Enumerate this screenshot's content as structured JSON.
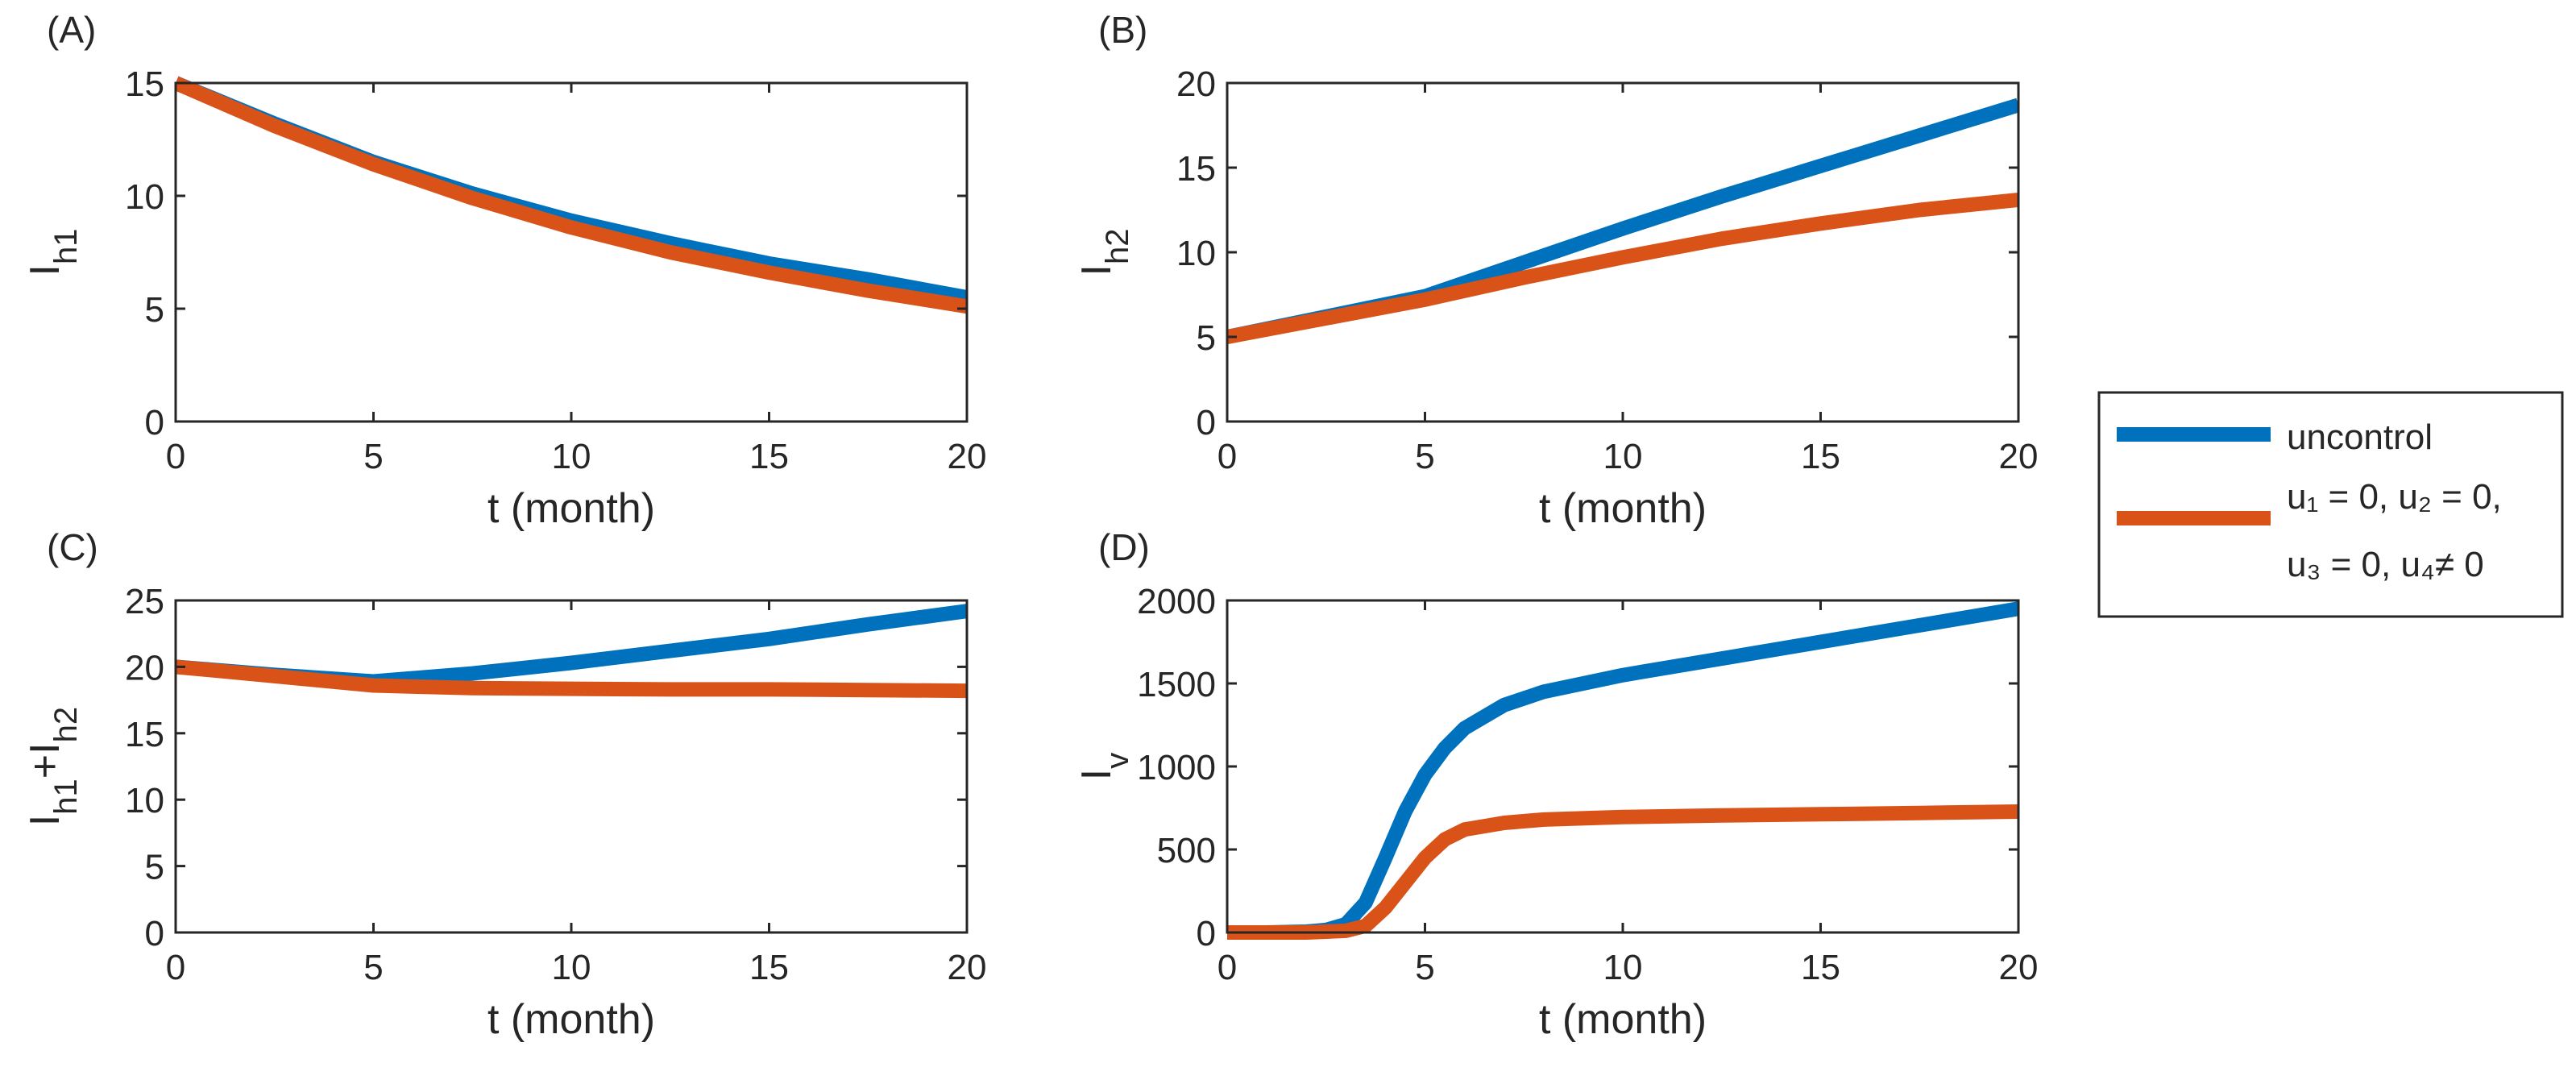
{
  "figure": {
    "legend": {
      "entries": [
        {
          "label_lines": [
            "uncontrol"
          ],
          "color": "#0072BD"
        },
        {
          "label_lines": [
            "u₁ = 0, u₂ = 0,",
            "u₃ = 0, u₄≠ 0"
          ],
          "color": "#D95319"
        }
      ]
    }
  },
  "chart_data": [
    {
      "type": "line",
      "panel_label": "(A)",
      "xlabel": "t (month)",
      "ylabel": "I_h1",
      "xlim": [
        0,
        20
      ],
      "ylim": [
        0,
        15
      ],
      "xticks": [
        0,
        5,
        10,
        15,
        20
      ],
      "yticks": [
        0,
        5,
        10,
        15
      ],
      "series": [
        {
          "name": "uncontrol",
          "color": "#0072BD",
          "x": [
            0,
            2.5,
            5,
            7.5,
            10,
            12.5,
            15,
            17.5,
            20
          ],
          "y": [
            15.0,
            13.2,
            11.5,
            10.1,
            8.9,
            7.9,
            7.0,
            6.3,
            5.5
          ]
        },
        {
          "name": "u1 = 0, u2 = 0, u3 = 0, u4 ≠ 0",
          "color": "#D95319",
          "x": [
            0,
            2.5,
            5,
            7.5,
            10,
            12.5,
            15,
            17.5,
            20
          ],
          "y": [
            15.0,
            13.1,
            11.4,
            9.9,
            8.6,
            7.5,
            6.6,
            5.8,
            5.1
          ]
        }
      ]
    },
    {
      "type": "line",
      "panel_label": "(B)",
      "xlabel": "t (month)",
      "ylabel": "I_h2",
      "xlim": [
        0,
        20
      ],
      "ylim": [
        0,
        20
      ],
      "xticks": [
        0,
        5,
        10,
        15,
        20
      ],
      "yticks": [
        0,
        5,
        10,
        15,
        20
      ],
      "series": [
        {
          "name": "uncontrol",
          "color": "#0072BD",
          "x": [
            0,
            2.5,
            5,
            7.5,
            10,
            12.5,
            15,
            17.5,
            20
          ],
          "y": [
            5.0,
            6.2,
            7.4,
            9.4,
            11.4,
            13.3,
            15.1,
            16.9,
            18.7
          ]
        },
        {
          "name": "u1 = 0, u2 = 0, u3 = 0, u4 ≠ 0",
          "color": "#D95319",
          "x": [
            0,
            2.5,
            5,
            7.5,
            10,
            12.5,
            15,
            17.5,
            20
          ],
          "y": [
            5.0,
            6.1,
            7.2,
            8.5,
            9.7,
            10.8,
            11.7,
            12.5,
            13.1
          ]
        }
      ]
    },
    {
      "type": "line",
      "panel_label": "(C)",
      "xlabel": "t (month)",
      "ylabel": "I_h1+I_h2",
      "xlim": [
        0,
        20
      ],
      "ylim": [
        0,
        25
      ],
      "xticks": [
        0,
        5,
        10,
        15,
        20
      ],
      "yticks": [
        0,
        5,
        10,
        15,
        20,
        25
      ],
      "series": [
        {
          "name": "uncontrol",
          "color": "#0072BD",
          "x": [
            0,
            2.5,
            5,
            7.5,
            10,
            12.5,
            15,
            17.5,
            20
          ],
          "y": [
            20.0,
            19.4,
            18.9,
            19.5,
            20.3,
            21.2,
            22.1,
            23.2,
            24.2
          ]
        },
        {
          "name": "u1 = 0, u2 = 0, u3 = 0, u4 ≠ 0",
          "color": "#D95319",
          "x": [
            0,
            2.5,
            5,
            7.5,
            10,
            12.5,
            15,
            17.5,
            20
          ],
          "y": [
            20.0,
            19.3,
            18.6,
            18.4,
            18.35,
            18.3,
            18.3,
            18.25,
            18.2
          ]
        }
      ]
    },
    {
      "type": "line",
      "panel_label": "(D)",
      "xlabel": "t (month)",
      "ylabel": "I_v",
      "xlim": [
        0,
        20
      ],
      "ylim": [
        0,
        2000
      ],
      "xticks": [
        0,
        5,
        10,
        15,
        20
      ],
      "yticks": [
        0,
        500,
        1000,
        1500,
        2000
      ],
      "series": [
        {
          "name": "uncontrol",
          "color": "#0072BD",
          "x": [
            0,
            1,
            2,
            2.5,
            3,
            3.5,
            4,
            4.5,
            5,
            5.5,
            6,
            7,
            8,
            10,
            12.5,
            15,
            17.5,
            20
          ],
          "y": [
            0,
            0,
            5,
            15,
            50,
            180,
            450,
            730,
            950,
            1110,
            1230,
            1370,
            1450,
            1550,
            1650,
            1750,
            1850,
            1950
          ]
        },
        {
          "name": "u1 = 0, u2 = 0, u3 = 0, u4 ≠ 0",
          "color": "#D95319",
          "x": [
            0,
            1,
            2,
            3,
            3.5,
            4,
            4.5,
            5,
            5.5,
            6,
            7,
            8,
            10,
            12.5,
            15,
            17.5,
            20
          ],
          "y": [
            0,
            0,
            0,
            10,
            40,
            150,
            300,
            450,
            560,
            620,
            660,
            680,
            695,
            705,
            712,
            720,
            728
          ]
        }
      ]
    }
  ]
}
